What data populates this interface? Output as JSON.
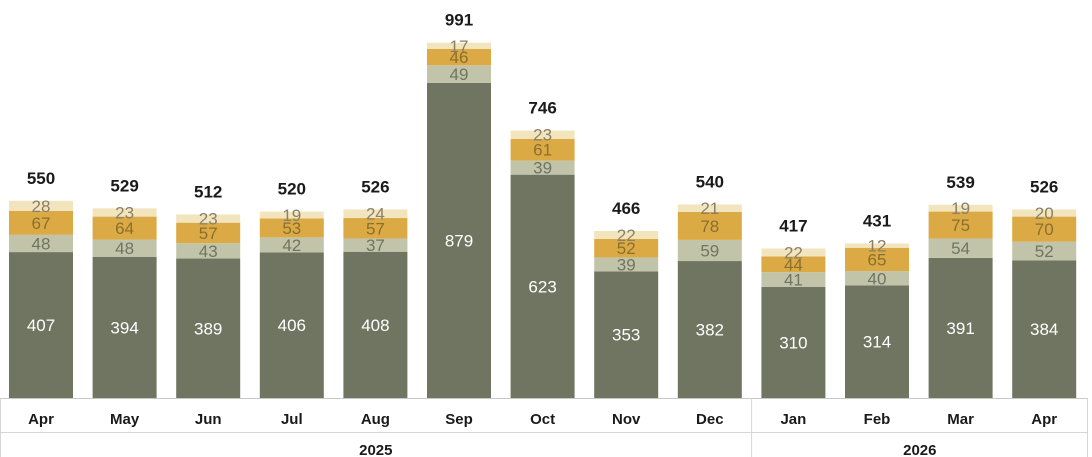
{
  "chart_data": {
    "type": "bar",
    "stacked": true,
    "title": "",
    "xlabel": "",
    "ylabel": "",
    "ylim": [
      0,
      1000
    ],
    "grid": false,
    "legend": "none",
    "categories": [
      "Apr",
      "May",
      "Jun",
      "Jul",
      "Aug",
      "Sep",
      "Oct",
      "Nov",
      "Dec",
      "Jan",
      "Feb",
      "Mar",
      "Apr"
    ],
    "year_groups": [
      {
        "label": "2025",
        "count": 9
      },
      {
        "label": "2026",
        "count": 4
      }
    ],
    "series": [
      {
        "color": "#6f7560",
        "label_color": "#ffffff",
        "values": [
          407,
          394,
          389,
          406,
          408,
          879,
          623,
          353,
          382,
          310,
          314,
          391,
          384
        ]
      },
      {
        "color": "#c2c4aa",
        "label_color": "#6f7560",
        "values": [
          48,
          48,
          43,
          42,
          37,
          49,
          39,
          39,
          59,
          41,
          40,
          54,
          52
        ]
      },
      {
        "color": "#dcaa45",
        "label_color": "#8a6f2e",
        "values": [
          67,
          64,
          57,
          53,
          57,
          46,
          61,
          52,
          78,
          44,
          65,
          75,
          70
        ]
      },
      {
        "color": "#f2e4bc",
        "label_color": "#8a8069",
        "values": [
          28,
          23,
          23,
          19,
          24,
          17,
          23,
          22,
          21,
          22,
          12,
          19,
          20
        ]
      }
    ],
    "totals": [
      550,
      529,
      512,
      520,
      526,
      991,
      746,
      466,
      540,
      417,
      431,
      539,
      526
    ]
  }
}
